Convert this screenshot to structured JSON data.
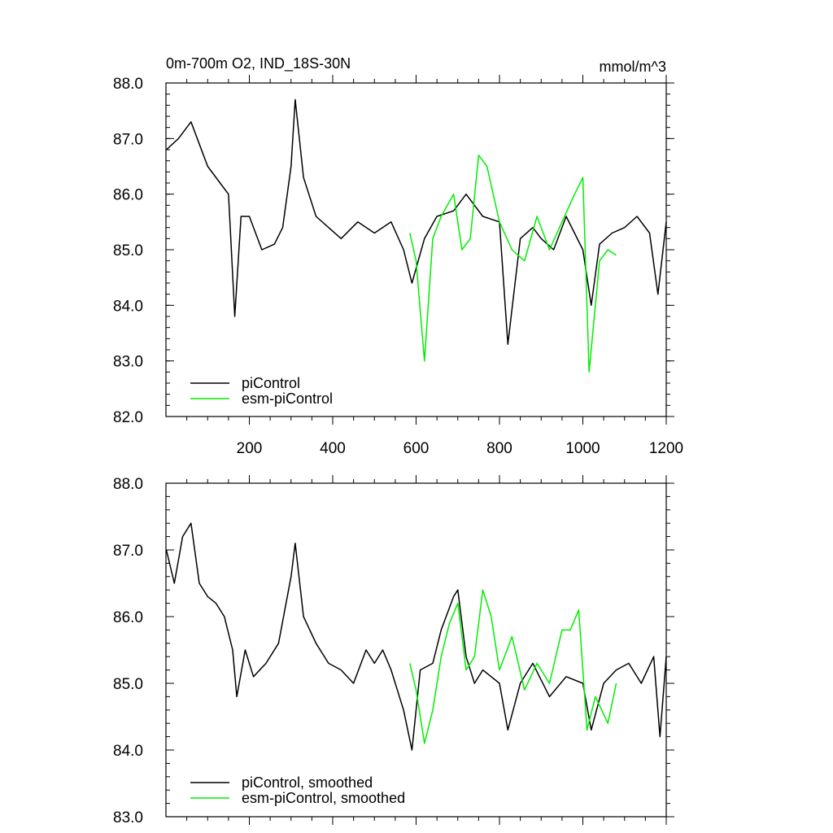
{
  "colors": {
    "piControl": "#000000",
    "esm_piControl": "#00ee00"
  },
  "chart_data": [
    {
      "type": "line",
      "title": "0m-700m O2, IND_18S-30N",
      "units": "mmol/m^3",
      "xlabel": "",
      "ylabel": "",
      "xlim": [
        0,
        1200
      ],
      "ylim": [
        82.0,
        88.0
      ],
      "x_ticks": [
        200,
        400,
        600,
        800,
        1000,
        1200
      ],
      "x_tick_labels": [
        "200",
        "400",
        "600",
        "800",
        "1000",
        "1200"
      ],
      "y_ticks": [
        82.0,
        83.0,
        84.0,
        85.0,
        86.0,
        87.0,
        88.0
      ],
      "y_tick_labels": [
        "82.0",
        "83.0",
        "84.0",
        "85.0",
        "86.0",
        "87.0",
        "88.0"
      ],
      "grid": false,
      "legend_position": "bottom-left",
      "series": [
        {
          "name": "piControl",
          "color": "#000000",
          "x": [
            1,
            30,
            60,
            100,
            130,
            150,
            165,
            180,
            200,
            230,
            260,
            280,
            300,
            310,
            330,
            360,
            390,
            420,
            460,
            500,
            540,
            570,
            590,
            620,
            650,
            690,
            720,
            760,
            800,
            820,
            850,
            880,
            900,
            930,
            960,
            1000,
            1020,
            1040,
            1070,
            1100,
            1130,
            1160,
            1180,
            1200
          ],
          "y": [
            86.8,
            87.0,
            87.3,
            86.5,
            86.2,
            86.0,
            83.8,
            85.6,
            85.6,
            85.0,
            85.1,
            85.4,
            86.5,
            87.7,
            86.3,
            85.6,
            85.4,
            85.2,
            85.5,
            85.3,
            85.5,
            85.0,
            84.4,
            85.2,
            85.6,
            85.7,
            86.0,
            85.6,
            85.5,
            83.3,
            85.2,
            85.4,
            85.2,
            85.0,
            85.6,
            85.0,
            84.0,
            85.1,
            85.3,
            85.4,
            85.6,
            85.3,
            84.2,
            85.5
          ]
        },
        {
          "name": "esm-piControl",
          "color": "#00ee00",
          "x": [
            585,
            600,
            620,
            640,
            660,
            690,
            710,
            730,
            750,
            770,
            800,
            830,
            860,
            890,
            920,
            950,
            980,
            1000,
            1015,
            1040,
            1060,
            1080
          ],
          "y": [
            85.3,
            84.8,
            83.0,
            85.2,
            85.6,
            86.0,
            85.0,
            85.2,
            86.7,
            86.5,
            85.5,
            85.0,
            84.8,
            85.6,
            85.0,
            85.5,
            86.0,
            86.3,
            82.8,
            84.8,
            85.0,
            84.9
          ]
        }
      ]
    },
    {
      "type": "line",
      "title": "",
      "xlabel": "",
      "ylabel": "",
      "xlim": [
        0,
        1200
      ],
      "ylim": [
        83.0,
        88.0
      ],
      "x_ticks": [
        200,
        400,
        600,
        800,
        1000,
        1200
      ],
      "y_ticks": [
        83.0,
        84.0,
        85.0,
        86.0,
        87.0,
        88.0
      ],
      "y_tick_labels": [
        "83.0",
        "84.0",
        "85.0",
        "86.0",
        "87.0",
        "88.0"
      ],
      "grid": false,
      "legend_position": "bottom-left",
      "series": [
        {
          "name": "piControl, smoothed",
          "color": "#000000",
          "x": [
            1,
            20,
            40,
            60,
            80,
            100,
            120,
            140,
            160,
            170,
            190,
            210,
            240,
            270,
            300,
            310,
            330,
            360,
            390,
            420,
            450,
            480,
            500,
            520,
            540,
            570,
            590,
            610,
            640,
            660,
            690,
            700,
            720,
            740,
            760,
            800,
            820,
            850,
            880,
            920,
            960,
            1000,
            1020,
            1050,
            1080,
            1110,
            1140,
            1170,
            1185,
            1200
          ],
          "y": [
            87.0,
            86.5,
            87.2,
            87.4,
            86.5,
            86.3,
            86.2,
            86.0,
            85.5,
            84.8,
            85.5,
            85.1,
            85.3,
            85.6,
            86.6,
            87.1,
            86.0,
            85.6,
            85.3,
            85.2,
            85.0,
            85.5,
            85.3,
            85.5,
            85.2,
            84.6,
            84.0,
            85.2,
            85.3,
            85.8,
            86.3,
            86.4,
            85.4,
            85.0,
            85.2,
            85.0,
            84.3,
            85.0,
            85.3,
            84.8,
            85.1,
            85.0,
            84.3,
            85.0,
            85.2,
            85.3,
            85.0,
            85.4,
            84.2,
            85.4
          ]
        },
        {
          "name": "esm-piControl, smoothed",
          "color": "#00ee00",
          "x": [
            585,
            600,
            620,
            640,
            660,
            680,
            700,
            720,
            740,
            760,
            780,
            800,
            830,
            860,
            890,
            920,
            950,
            970,
            990,
            1010,
            1030,
            1060,
            1080
          ],
          "y": [
            85.3,
            84.9,
            84.1,
            84.6,
            85.4,
            85.9,
            86.2,
            85.2,
            85.4,
            86.4,
            86.0,
            85.2,
            85.7,
            84.9,
            85.3,
            85.0,
            85.8,
            85.8,
            86.1,
            84.3,
            84.8,
            84.4,
            85.0
          ]
        }
      ]
    }
  ]
}
